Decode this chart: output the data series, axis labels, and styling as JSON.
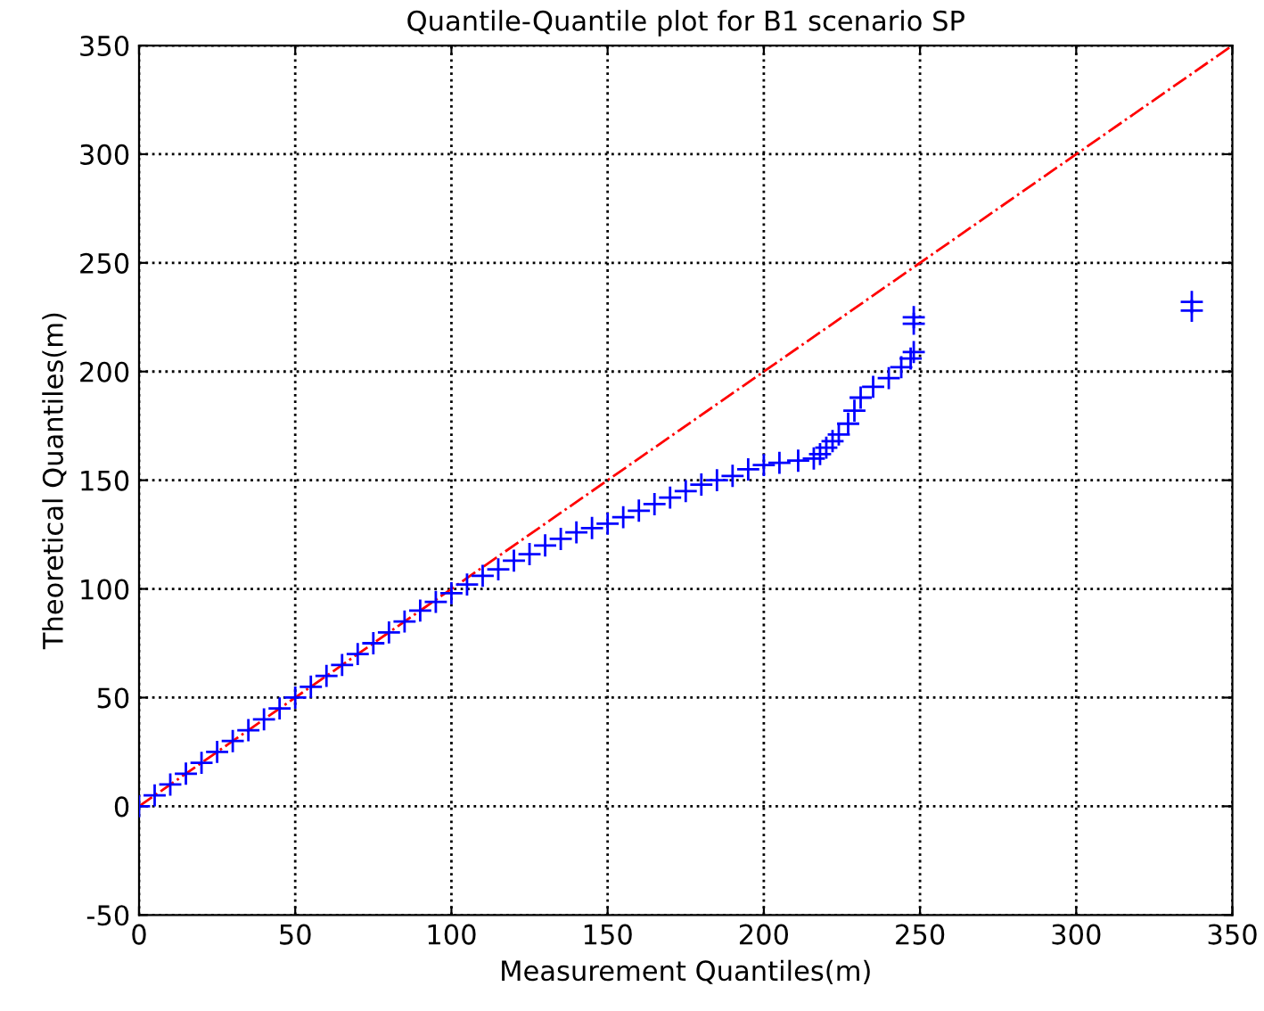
{
  "chart_data": {
    "type": "scatter",
    "title": "Quantile-Quantile plot for B1 scenario SP",
    "xlabel": "Measurement Quantiles(m)",
    "ylabel": "Theoretical Quantiles(m)",
    "xlim": [
      0,
      350
    ],
    "ylim": [
      -50,
      350
    ],
    "xticks": [
      0,
      50,
      100,
      150,
      200,
      250,
      300,
      350
    ],
    "yticks": [
      -50,
      0,
      50,
      100,
      150,
      200,
      250,
      300,
      350
    ],
    "grid": true,
    "series": [
      {
        "marker": "cross",
        "color": "#0000ff",
        "x": [
          0,
          5,
          10,
          15,
          20,
          25,
          30,
          35,
          40,
          45,
          50,
          55,
          60,
          65,
          70,
          75,
          80,
          85,
          90,
          95,
          100,
          105,
          110,
          115,
          120,
          125,
          130,
          135,
          140,
          145,
          150,
          155,
          160,
          165,
          170,
          175,
          180,
          185,
          190,
          195,
          200,
          205,
          211,
          216,
          218,
          220,
          222,
          224,
          227,
          229,
          231,
          235,
          240,
          244,
          247,
          248,
          248,
          248,
          337,
          337
        ],
        "values": [
          0,
          5,
          10,
          15,
          20,
          25,
          30,
          35,
          40,
          45,
          50,
          55,
          60,
          65,
          70,
          75,
          80,
          85,
          90,
          94,
          98,
          102,
          106,
          109,
          113,
          116,
          120,
          123,
          126,
          128,
          130,
          133,
          136,
          139,
          142,
          145,
          148,
          150,
          152,
          155,
          157,
          158,
          159,
          160,
          162,
          165,
          168,
          171,
          176,
          182,
          188,
          193,
          197,
          202,
          206,
          209,
          222,
          225,
          228,
          232
        ]
      },
      {
        "type": "line",
        "line_style": "dashdot",
        "color": "#ff0000",
        "x": [
          0,
          350
        ],
        "values": [
          0,
          350
        ]
      }
    ]
  }
}
